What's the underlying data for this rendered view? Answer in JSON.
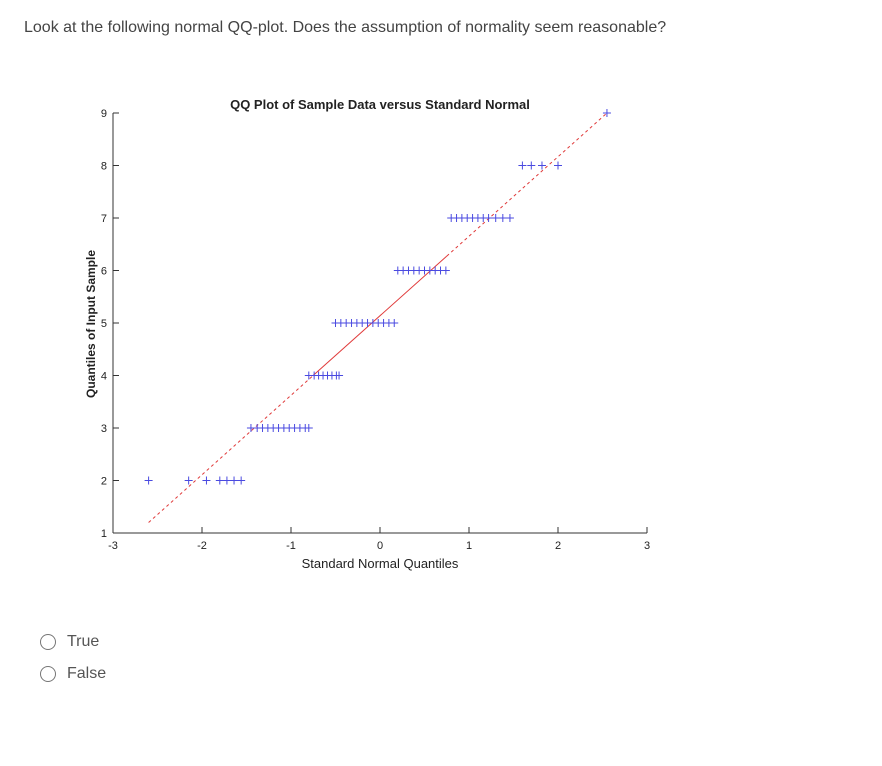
{
  "question": {
    "text": "Look at the following normal QQ-plot. Does the assumption of normality seem reasonable?"
  },
  "options": [
    {
      "label": "True",
      "selected": false
    },
    {
      "label": "False",
      "selected": false
    }
  ],
  "colors": {
    "points": "#4a4ae0",
    "reference_line": "#e03a3a",
    "axis": "#333333"
  },
  "chart_data": {
    "type": "scatter",
    "title": "QQ Plot of Sample Data versus Standard Normal",
    "xlabel": "Standard Normal Quantiles",
    "ylabel": "Quantiles of Input Sample",
    "xlim": [
      -3,
      3
    ],
    "ylim": [
      1,
      9
    ],
    "xticks": [
      "-3",
      "-2",
      "-1",
      "0",
      "1",
      "2",
      "3"
    ],
    "yticks": [
      "1",
      "2",
      "3",
      "4",
      "5",
      "6",
      "7",
      "8",
      "9"
    ],
    "grid": false,
    "marker": "+",
    "points": [
      {
        "x": -2.6,
        "y": 2
      },
      {
        "x": -2.15,
        "y": 2
      },
      {
        "x": -1.95,
        "y": 2
      },
      {
        "x": -1.8,
        "y": 2
      },
      {
        "x": -1.72,
        "y": 2
      },
      {
        "x": -1.64,
        "y": 2
      },
      {
        "x": -1.56,
        "y": 2
      },
      {
        "x": -1.45,
        "y": 3
      },
      {
        "x": -1.38,
        "y": 3
      },
      {
        "x": -1.32,
        "y": 3
      },
      {
        "x": -1.26,
        "y": 3
      },
      {
        "x": -1.2,
        "y": 3
      },
      {
        "x": -1.14,
        "y": 3
      },
      {
        "x": -1.08,
        "y": 3
      },
      {
        "x": -1.02,
        "y": 3
      },
      {
        "x": -0.96,
        "y": 3
      },
      {
        "x": -0.9,
        "y": 3
      },
      {
        "x": -0.84,
        "y": 3
      },
      {
        "x": -0.8,
        "y": 3
      },
      {
        "x": -0.8,
        "y": 4
      },
      {
        "x": -0.74,
        "y": 4
      },
      {
        "x": -0.69,
        "y": 4
      },
      {
        "x": -0.64,
        "y": 4
      },
      {
        "x": -0.59,
        "y": 4
      },
      {
        "x": -0.54,
        "y": 4
      },
      {
        "x": -0.49,
        "y": 4
      },
      {
        "x": -0.46,
        "y": 4
      },
      {
        "x": -0.5,
        "y": 5
      },
      {
        "x": -0.44,
        "y": 5
      },
      {
        "x": -0.38,
        "y": 5
      },
      {
        "x": -0.32,
        "y": 5
      },
      {
        "x": -0.26,
        "y": 5
      },
      {
        "x": -0.2,
        "y": 5
      },
      {
        "x": -0.14,
        "y": 5
      },
      {
        "x": -0.08,
        "y": 5
      },
      {
        "x": -0.02,
        "y": 5
      },
      {
        "x": 0.04,
        "y": 5
      },
      {
        "x": 0.1,
        "y": 5
      },
      {
        "x": 0.16,
        "y": 5
      },
      {
        "x": 0.2,
        "y": 6
      },
      {
        "x": 0.26,
        "y": 6
      },
      {
        "x": 0.32,
        "y": 6
      },
      {
        "x": 0.38,
        "y": 6
      },
      {
        "x": 0.44,
        "y": 6
      },
      {
        "x": 0.5,
        "y": 6
      },
      {
        "x": 0.56,
        "y": 6
      },
      {
        "x": 0.62,
        "y": 6
      },
      {
        "x": 0.68,
        "y": 6
      },
      {
        "x": 0.74,
        "y": 6
      },
      {
        "x": 0.8,
        "y": 7
      },
      {
        "x": 0.86,
        "y": 7
      },
      {
        "x": 0.92,
        "y": 7
      },
      {
        "x": 0.98,
        "y": 7
      },
      {
        "x": 1.04,
        "y": 7
      },
      {
        "x": 1.1,
        "y": 7
      },
      {
        "x": 1.16,
        "y": 7
      },
      {
        "x": 1.22,
        "y": 7
      },
      {
        "x": 1.3,
        "y": 7
      },
      {
        "x": 1.38,
        "y": 7
      },
      {
        "x": 1.46,
        "y": 7
      },
      {
        "x": 1.6,
        "y": 8
      },
      {
        "x": 1.7,
        "y": 8
      },
      {
        "x": 1.82,
        "y": 8
      },
      {
        "x": 2.0,
        "y": 8
      },
      {
        "x": 2.55,
        "y": 9
      }
    ],
    "reference_line": {
      "x": [
        -2.6,
        2.55
      ],
      "y": [
        1.2,
        9.0
      ]
    }
  }
}
